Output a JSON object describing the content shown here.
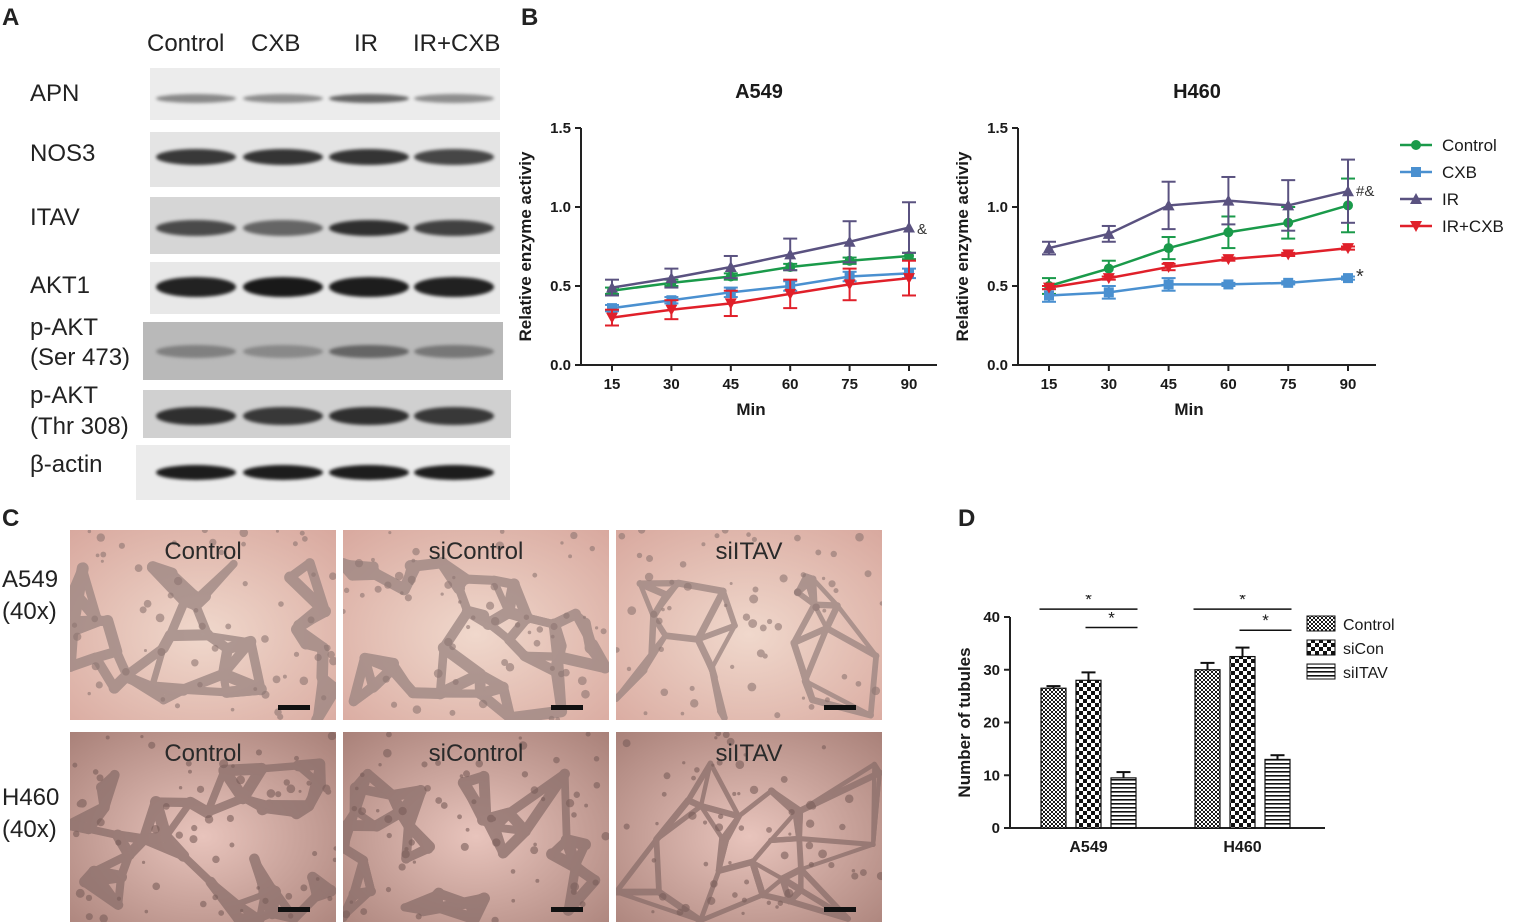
{
  "panels": {
    "a": "A",
    "b": "B",
    "c": "C",
    "d": "D"
  },
  "panel_a": {
    "columns": [
      "Control",
      "CXB",
      "IR",
      "IR+CXB"
    ],
    "rows": [
      {
        "label_lines": [
          "APN"
        ]
      },
      {
        "label_lines": [
          "NOS3"
        ]
      },
      {
        "label_lines": [
          "ITAV"
        ]
      },
      {
        "label_lines": [
          "AKT1"
        ]
      },
      {
        "label_lines": [
          "p-AKT",
          "(Ser 473)"
        ]
      },
      {
        "label_lines": [
          "p-AKT",
          "(Thr 308)"
        ]
      },
      {
        "label_lines": [
          "β-actin"
        ]
      }
    ]
  },
  "panel_c": {
    "columns": [
      "Control",
      "siControl",
      "siITAV"
    ],
    "rows": [
      {
        "label_lines": [
          "A549",
          "(40x)"
        ]
      },
      {
        "label_lines": [
          "H460",
          "(40x)"
        ]
      }
    ]
  },
  "chart_data": [
    {
      "type": "line",
      "title": "A549",
      "xlabel": "Min",
      "ylabel": "Relative enzyme activiy",
      "x": [
        15,
        30,
        45,
        60,
        75,
        90
      ],
      "ylim": [
        0.0,
        1.5
      ],
      "yticks": [
        "0.0",
        "0.5",
        "1.0",
        "1.5"
      ],
      "xticks": [
        "15",
        "30",
        "45",
        "60",
        "75",
        "90"
      ],
      "series": [
        {
          "name": "Control",
          "color": "#1a9a4a",
          "marker": "circle",
          "values": [
            0.47,
            0.52,
            0.56,
            0.62,
            0.66,
            0.69
          ],
          "errors": [
            0.02,
            0.02,
            0.02,
            0.02,
            0.02,
            0.02
          ]
        },
        {
          "name": "CXB",
          "color": "#4a90d0",
          "marker": "square",
          "values": [
            0.36,
            0.41,
            0.46,
            0.5,
            0.56,
            0.58
          ],
          "errors": [
            0.02,
            0.02,
            0.03,
            0.03,
            0.03,
            0.03
          ]
        },
        {
          "name": "IR",
          "color": "#5a5280",
          "marker": "triangle-up",
          "values": [
            0.49,
            0.55,
            0.62,
            0.7,
            0.78,
            0.87
          ],
          "errors": [
            0.05,
            0.06,
            0.07,
            0.1,
            0.13,
            0.16
          ]
        },
        {
          "name": "IR+CXB",
          "color": "#e0202a",
          "marker": "triangle-down",
          "values": [
            0.3,
            0.35,
            0.39,
            0.45,
            0.51,
            0.55
          ],
          "errors": [
            0.05,
            0.06,
            0.08,
            0.09,
            0.1,
            0.11
          ]
        }
      ],
      "annotations": [
        {
          "text": "&",
          "x": 90,
          "y": 0.86
        }
      ]
    },
    {
      "type": "line",
      "title": "H460",
      "xlabel": "Min",
      "ylabel": "Relative enzyme activiy",
      "x": [
        15,
        30,
        45,
        60,
        75,
        90
      ],
      "ylim": [
        0.0,
        1.5
      ],
      "yticks": [
        "0.0",
        "0.5",
        "1.0",
        "1.5"
      ],
      "xticks": [
        "15",
        "30",
        "45",
        "60",
        "75",
        "90"
      ],
      "series": [
        {
          "name": "Control",
          "color": "#1a9a4a",
          "marker": "circle",
          "values": [
            0.5,
            0.61,
            0.74,
            0.84,
            0.9,
            1.01
          ],
          "errors": [
            0.05,
            0.05,
            0.07,
            0.1,
            0.1,
            0.17
          ]
        },
        {
          "name": "CXB",
          "color": "#4a90d0",
          "marker": "square",
          "values": [
            0.44,
            0.46,
            0.51,
            0.51,
            0.52,
            0.55
          ],
          "errors": [
            0.04,
            0.04,
            0.04,
            0.01,
            0.01,
            0.01
          ]
        },
        {
          "name": "IR",
          "color": "#5a5280",
          "marker": "triangle-up",
          "values": [
            0.74,
            0.83,
            1.01,
            1.04,
            1.01,
            1.1
          ],
          "errors": [
            0.04,
            0.05,
            0.15,
            0.15,
            0.16,
            0.2
          ]
        },
        {
          "name": "IR+CXB",
          "color": "#e0202a",
          "marker": "triangle-down",
          "values": [
            0.49,
            0.55,
            0.62,
            0.67,
            0.7,
            0.74
          ],
          "errors": [
            0.01,
            0.01,
            0.02,
            0.01,
            0.01,
            0.01
          ]
        }
      ],
      "annotations": [
        {
          "text": "#&",
          "x": 90,
          "y": 1.1
        },
        {
          "text": "*",
          "x": 90,
          "y": 0.55
        }
      ]
    },
    {
      "type": "bar",
      "xlabel": "",
      "ylabel": "Number of tubules",
      "categories": [
        "A549",
        "H460"
      ],
      "ylim": [
        0,
        40
      ],
      "yticks": [
        "0",
        "10",
        "20",
        "30",
        "40"
      ],
      "series": [
        {
          "name": "Control",
          "pattern": "dense-check",
          "values": [
            26.5,
            30
          ],
          "errors": [
            0.4,
            1.3
          ]
        },
        {
          "name": "siCon",
          "pattern": "checkerboard",
          "values": [
            28,
            32.5
          ],
          "errors": [
            1.5,
            1.7
          ]
        },
        {
          "name": "siITAV",
          "pattern": "horizontal-stripes",
          "values": [
            9.5,
            13
          ],
          "errors": [
            1.1,
            0.8
          ]
        }
      ],
      "significance": [
        {
          "category": "A549",
          "from": "Control",
          "to": "siITAV",
          "text": "*"
        },
        {
          "category": "A549",
          "from": "siCon",
          "to": "siITAV",
          "text": "*"
        },
        {
          "category": "H460",
          "from": "Control",
          "to": "siITAV",
          "text": "*"
        },
        {
          "category": "H460",
          "from": "siCon",
          "to": "siITAV",
          "text": "*"
        }
      ]
    }
  ]
}
